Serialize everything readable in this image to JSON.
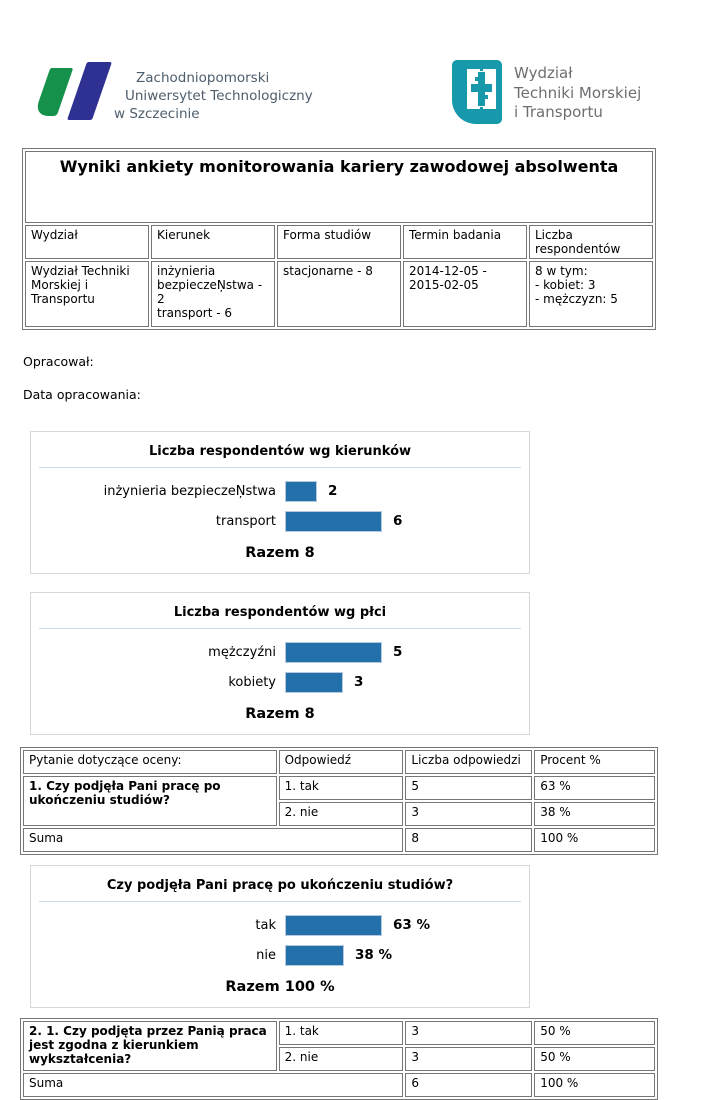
{
  "colors": {
    "bar_blue": "#2470ab",
    "bar_border": "#b5cade",
    "logo_green": "#15914c",
    "logo_blue": "#2e3192",
    "logo_teal": "#1798ab",
    "university_text": "#4d5d6c",
    "faculty_text": "#6d6e71",
    "table_border": "#767676",
    "chart_rule": "#ccd9e8"
  },
  "logos": {
    "university": {
      "lines": [
        "Zachodniopomorski",
        "Uniwersytet Technologiczny",
        "w Szczecinie"
      ]
    },
    "faculty": {
      "lines": [
        "Wydział",
        "Techniki Morskiej",
        "i Transportu"
      ]
    }
  },
  "title": "Wyniki ankiety monitorowania kariery zawodowej absolwenta",
  "info_table": {
    "headers": [
      "Wydział",
      "Kierunek",
      "Forma studiów",
      "Termin badania",
      "Liczba respondentów"
    ],
    "cells": [
      "Wydział Techniki\nMorskiej i Transportu",
      "inżynieria\nbezpieczeŅstwa - 2\ntransport - 6",
      "stacjonarne - 8",
      "2014-12-05 -\n2015-02-05",
      "8 w tym:\n- kobiet: 3\n- mężczyzn: 5"
    ]
  },
  "prepared": {
    "by_label": "Opracował:",
    "date_label": "Data opracowania:"
  },
  "chart_data": [
    {
      "type": "bar",
      "orientation": "horizontal",
      "title": "Liczba respondentów wg kierunków",
      "categories": [
        "inżynieria bezpieczeŅstwa",
        "transport"
      ],
      "values": [
        2,
        6
      ],
      "value_labels": [
        "2",
        "6"
      ],
      "footer": "Razem 8",
      "xlim": [
        0,
        6
      ],
      "grid": false,
      "legend": false,
      "bar_color": "#2470ab"
    },
    {
      "type": "bar",
      "orientation": "horizontal",
      "title": "Liczba respondentów wg płci",
      "categories": [
        "mężczyźni",
        "kobiety"
      ],
      "values": [
        5,
        3
      ],
      "value_labels": [
        "5",
        "3"
      ],
      "footer": "Razem 8",
      "xlim": [
        0,
        5
      ],
      "grid": false,
      "legend": false,
      "bar_color": "#2470ab"
    },
    {
      "type": "bar",
      "orientation": "horizontal",
      "title": "Czy podjęła Pani pracę po ukończeniu studiów?",
      "categories": [
        "tak",
        "nie"
      ],
      "values": [
        63,
        38
      ],
      "value_labels": [
        "63 %",
        "38 %"
      ],
      "footer": "Razem 100 %",
      "xlim": [
        0,
        63
      ],
      "grid": false,
      "legend": false,
      "bar_color": "#2470ab"
    }
  ],
  "qtables": {
    "headers": [
      "Pytanie dotyczące oceny:",
      "Odpowiedź",
      "Liczba odpowiedzi",
      "Procent %"
    ],
    "q1": {
      "question": "1. Czy podjęła Pani pracę po ukończeniu studiów?",
      "rows": [
        [
          "1. tak",
          "5",
          "63 %"
        ],
        [
          "2. nie",
          "3",
          "38 %"
        ]
      ],
      "suma": [
        "Suma",
        "8",
        "100 %"
      ]
    },
    "q2": {
      "question": "2. 1. Czy podjęta przez Panią praca jest zgodna z kierunkiem wykształcenia?",
      "rows": [
        [
          "1. tak",
          "3",
          "50 %"
        ],
        [
          "2. nie",
          "3",
          "50 %"
        ]
      ],
      "suma": [
        "Suma",
        "6",
        "100 %"
      ]
    }
  }
}
